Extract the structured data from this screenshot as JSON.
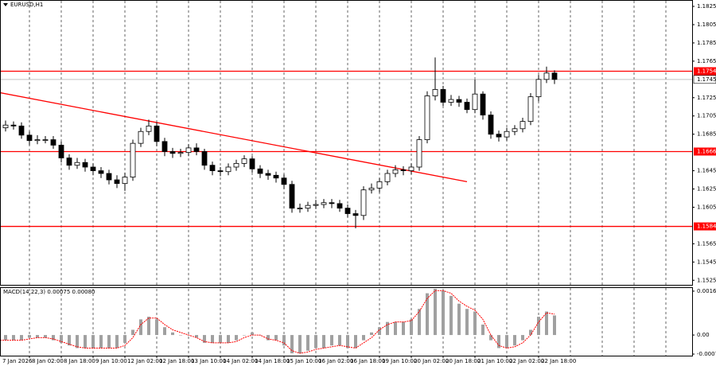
{
  "chart_data": {
    "type": "candlestick",
    "title": "EURUSD,H1",
    "categories": [
      "7 Jan 2026",
      null,
      null,
      null,
      "8 Jan 02:00",
      null,
      null,
      null,
      "8 Jan 18:00",
      null,
      null,
      null,
      "9 Jan 10:00",
      null,
      null,
      null,
      "12 Jan 02:00",
      null,
      null,
      null,
      "12 Jan 18:00",
      null,
      null,
      null,
      "13 Jan 10:00",
      null,
      null,
      null,
      "14 Jan 02:00",
      null,
      null,
      null,
      "14 Jan 18:00",
      null,
      null,
      null,
      "15 Jan 10:00",
      null,
      null,
      null,
      "16 Jan 02:00",
      null,
      null,
      null,
      "16 Jan 18:00",
      null,
      null,
      null,
      "19 Jan 10:00",
      null,
      null,
      null,
      "20 Jan 02:00",
      null,
      null,
      null,
      "20 Jan 18:00",
      null,
      null,
      null,
      "21 Jan 10:00",
      null,
      null,
      null,
      "22 Jan 02:00",
      null,
      null,
      null,
      "22 Jan 18:00",
      null,
      null
    ],
    "open": [
      1.1688,
      1.1692,
      1.1695,
      1.1694,
      1.1684,
      1.1678,
      1.1679,
      1.1679,
      1.1673,
      1.1659,
      1.1651,
      1.1654,
      1.1649,
      1.1645,
      1.1642,
      1.1635,
      1.1631,
      1.1638,
      1.1675,
      1.1688,
      1.1694,
      1.1677,
      1.1666,
      1.1664,
      1.1665,
      1.167,
      1.1666,
      1.1651,
      1.1645,
      1.1644,
      1.1649,
      1.1653,
      1.1658,
      1.1647,
      1.1642,
      1.164,
      1.1637,
      1.163,
      1.1604,
      1.1604,
      1.1607,
      1.1608,
      1.161,
      1.1609,
      1.1604,
      1.1598,
      1.1596,
      1.1624,
      1.1626,
      1.1633,
      1.1642,
      1.1646,
      1.1645,
      1.1649,
      1.1679,
      1.1727,
      1.1734,
      1.172,
      1.1723,
      1.172,
      1.1712,
      1.1729,
      1.1706,
      1.1685,
      1.1682,
      1.1688,
      1.1691,
      1.1699,
      1.1726,
      1.1745,
      1.1752
    ],
    "high": [
      1.1697,
      1.17,
      1.1699,
      1.1698,
      1.1688,
      1.1684,
      1.1683,
      1.1683,
      1.1677,
      1.1663,
      1.1659,
      1.1658,
      1.1653,
      1.1649,
      1.1646,
      1.164,
      1.1643,
      1.1679,
      1.1692,
      1.1701,
      1.1698,
      1.1681,
      1.167,
      1.1669,
      1.1674,
      1.1675,
      1.1669,
      1.1655,
      1.1649,
      1.1653,
      1.1657,
      1.1662,
      1.1661,
      1.1651,
      1.1646,
      1.1644,
      1.1641,
      1.1634,
      1.1609,
      1.1611,
      1.1613,
      1.1614,
      1.1614,
      1.1613,
      1.1608,
      1.1602,
      1.1628,
      1.1631,
      1.1637,
      1.1646,
      1.1651,
      1.165,
      1.1653,
      1.1683,
      1.1732,
      1.1769,
      1.1738,
      1.1728,
      1.1727,
      1.1724,
      1.1745,
      1.1732,
      1.171,
      1.1689,
      1.1692,
      1.1695,
      1.1703,
      1.173,
      1.175,
      1.1759,
      1.1755
    ],
    "low": [
      1.1683,
      1.1688,
      1.169,
      1.168,
      1.1673,
      1.1674,
      1.1675,
      1.1669,
      1.1654,
      1.1646,
      1.1647,
      1.1644,
      1.164,
      1.1637,
      1.163,
      1.1626,
      1.1623,
      1.1634,
      1.1671,
      1.1684,
      1.1672,
      1.1661,
      1.1659,
      1.166,
      1.1661,
      1.1662,
      1.1646,
      1.164,
      1.1639,
      1.164,
      1.1645,
      1.1649,
      1.1643,
      1.1637,
      1.1635,
      1.1632,
      1.1625,
      1.1599,
      1.1599,
      1.16,
      1.1603,
      1.1604,
      1.1604,
      1.16,
      1.1594,
      1.1582,
      1.1591,
      1.162,
      1.1621,
      1.1629,
      1.1638,
      1.164,
      1.1641,
      1.1645,
      1.1675,
      1.1722,
      1.1716,
      1.1716,
      1.1715,
      1.1708,
      1.1708,
      1.1701,
      1.168,
      1.1677,
      1.1678,
      1.1684,
      1.1687,
      1.1695,
      1.1721,
      1.1741,
      1.174
    ],
    "close": [
      1.1692,
      1.1695,
      1.1694,
      1.1684,
      1.1678,
      1.1679,
      1.1679,
      1.1673,
      1.1659,
      1.1651,
      1.1654,
      1.1649,
      1.1645,
      1.1642,
      1.1635,
      1.1631,
      1.1638,
      1.1675,
      1.1688,
      1.1694,
      1.1677,
      1.1666,
      1.1664,
      1.1665,
      1.167,
      1.1666,
      1.1651,
      1.1645,
      1.1644,
      1.1649,
      1.1653,
      1.1658,
      1.1647,
      1.1642,
      1.164,
      1.1637,
      1.163,
      1.1604,
      1.1604,
      1.1607,
      1.1608,
      1.161,
      1.1609,
      1.1604,
      1.1598,
      1.1596,
      1.1624,
      1.1626,
      1.1633,
      1.1642,
      1.1646,
      1.1645,
      1.1649,
      1.1679,
      1.1727,
      1.1734,
      1.172,
      1.1723,
      1.172,
      1.1712,
      1.1729,
      1.1706,
      1.1685,
      1.1682,
      1.1688,
      1.1691,
      1.1699,
      1.1726,
      1.1745,
      1.1752,
      1.1745
    ],
    "ylim": [
      1.152,
      1.1832
    ],
    "yticks": [
      1.1825,
      1.1805,
      1.1785,
      1.1765,
      1.1725,
      1.1705,
      1.1685,
      1.1645,
      1.1625,
      1.1605,
      1.1565,
      1.1545,
      1.1525
    ],
    "levels": [
      1.1754,
      1.1666,
      1.1584
    ],
    "level_color": "#ff0000",
    "current_price": 1.1745,
    "trendline": {
      "x": [
        0,
        59
      ],
      "values": [
        1.1731,
        1.1633
      ]
    },
    "indicator": {
      "title": "MACD(14,22,3) 0.00075 0.00080",
      "histogram": [
        -0.0002,
        -0.0002,
        -0.0002,
        -0.0002,
        -0.0001,
        -0.0001,
        -0.0001,
        -0.0002,
        -0.0003,
        -0.0004,
        -0.0005,
        -0.0005,
        -0.0005,
        -0.0005,
        -0.0005,
        -0.0005,
        -0.0003,
        0.0002,
        0.0006,
        0.0007,
        0.0006,
        0.0003,
        0.0001,
        0.0,
        0.0,
        -0.0001,
        -0.0003,
        -0.0003,
        -0.0003,
        -0.0003,
        -0.0002,
        0.0,
        0.0001,
        0.0,
        -0.0002,
        -0.0002,
        -0.0004,
        -0.0007,
        -0.0007,
        -0.0006,
        -0.0005,
        -0.0005,
        -0.0004,
        -0.0004,
        -0.0005,
        -0.0005,
        -0.0002,
        0.0001,
        0.0003,
        0.0005,
        0.0005,
        0.0005,
        0.0006,
        0.001,
        0.0016,
        0.0018,
        0.0017,
        0.0015,
        0.0012,
        0.001,
        0.0009,
        0.0004,
        -0.0002,
        -0.0005,
        -0.0005,
        -0.0004,
        -0.0002,
        0.0002,
        0.0007,
        0.0009,
        0.00075
      ],
      "signal": [
        -0.0002,
        -0.0002,
        -0.0002,
        -0.0002,
        -0.00015,
        -0.0001,
        -0.0001,
        -0.00015,
        -0.00025,
        -0.00035,
        -0.00045,
        -0.0005,
        -0.0005,
        -0.0005,
        -0.0005,
        -0.0005,
        -0.0004,
        -0.0001,
        0.0004,
        0.00065,
        0.00065,
        0.0004,
        0.0002,
        0.0001,
        0.0,
        -0.0001,
        -0.00025,
        -0.0003,
        -0.0003,
        -0.0003,
        -0.00025,
        -0.0001,
        0.0,
        0.0,
        -0.00015,
        -0.0002,
        -0.0003,
        -0.0006,
        -0.0007,
        -0.00065,
        -0.00055,
        -0.0005,
        -0.00045,
        -0.0004,
        -0.00045,
        -0.0005,
        -0.0003,
        -0.0001,
        0.0002,
        0.0004,
        0.0005,
        0.0005,
        0.00055,
        0.0009,
        0.0014,
        0.0017,
        0.0017,
        0.0016,
        0.0013,
        0.0011,
        0.00095,
        0.0006,
        0.0,
        -0.0004,
        -0.0005,
        -0.00045,
        -0.0003,
        0.0,
        0.0005,
        0.00085,
        0.0008
      ],
      "histogram_color": "#a0a0a0",
      "signal_color": "#ff0000",
      "ylim": [
        -0.00079,
        0.0018
      ],
      "yticks": [
        0.00168,
        {
          "value": 0,
          "label": "0.00"
        },
        -0.00073
      ]
    }
  }
}
